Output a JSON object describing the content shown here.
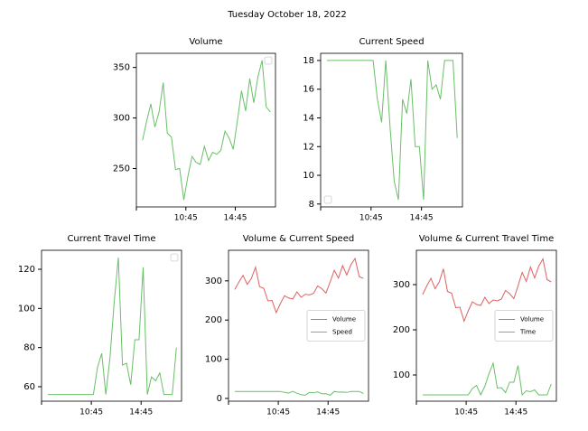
{
  "title": "Tuesday October 18, 2022",
  "chart_data": [
    {
      "type": "line",
      "title": "Volume",
      "legend": "upper right",
      "x": [
        "07:15",
        "07:35",
        "07:55",
        "08:15",
        "08:35",
        "08:55",
        "09:15",
        "09:35",
        "09:55",
        "10:15",
        "10:35",
        "10:55",
        "11:15",
        "11:35",
        "11:55",
        "12:15",
        "12:35",
        "12:55",
        "13:15",
        "13:35",
        "13:55",
        "14:15",
        "14:35",
        "14:55",
        "15:15",
        "15:35",
        "15:55",
        "16:15",
        "16:35",
        "16:55",
        "17:15",
        "17:35"
      ],
      "series": [
        {
          "color": "#6abf69",
          "values": [
            278,
            297,
            314,
            291,
            306,
            335,
            285,
            281,
            249,
            250,
            219,
            242,
            262,
            256,
            254,
            272,
            258,
            266,
            264,
            268,
            287,
            280,
            269,
            297,
            327,
            307,
            339,
            315,
            341,
            357,
            311,
            306
          ]
        }
      ],
      "xlim": [
        "06:45",
        "18:00"
      ],
      "xticks": [
        {
          "value": "06:45",
          "label": null
        },
        "10:45",
        "14:45"
      ],
      "ylim": [
        212,
        364
      ],
      "yticks": [
        250,
        300,
        350
      ]
    },
    {
      "type": "line",
      "title": "Current Speed",
      "legend": "lower left",
      "x": [
        "07:15",
        "07:35",
        "07:55",
        "08:15",
        "08:35",
        "08:55",
        "09:15",
        "09:35",
        "09:55",
        "10:15",
        "10:35",
        "10:55",
        "11:15",
        "11:35",
        "11:55",
        "12:15",
        "12:35",
        "12:55",
        "13:15",
        "13:35",
        "13:55",
        "14:15",
        "14:35",
        "14:55",
        "15:15",
        "15:35",
        "15:55",
        "16:15",
        "16:35",
        "16:55",
        "17:15",
        "17:35"
      ],
      "series": [
        {
          "color": "#6abf69",
          "values": [
            18,
            18,
            18,
            18,
            18,
            18,
            18,
            18,
            18,
            18,
            18,
            18,
            15.3,
            13.7,
            18,
            13.4,
            9.6,
            8.3,
            15.3,
            14.3,
            16.7,
            12,
            12,
            8.3,
            18,
            16,
            16.3,
            15.3,
            18,
            18,
            18,
            12.6
          ]
        }
      ],
      "xlim": [
        "06:45",
        "18:00"
      ],
      "xticks": [
        {
          "value": "06:45",
          "label": null
        },
        "10:45",
        "14:45"
      ],
      "ylim": [
        7.8,
        18.5
      ],
      "yticks": [
        8,
        10,
        12,
        14,
        16,
        18
      ]
    },
    {
      "type": "line",
      "title": "Current Travel Time",
      "legend": "upper right",
      "x": [
        "07:15",
        "07:35",
        "07:55",
        "08:15",
        "08:35",
        "08:55",
        "09:15",
        "09:35",
        "09:55",
        "10:15",
        "10:35",
        "10:55",
        "11:15",
        "11:35",
        "11:55",
        "12:15",
        "12:35",
        "12:55",
        "13:15",
        "13:35",
        "13:55",
        "14:15",
        "14:35",
        "14:55",
        "15:15",
        "15:35",
        "15:55",
        "16:15",
        "16:35",
        "16:55",
        "17:15",
        "17:35"
      ],
      "series": [
        {
          "color": "#6abf69",
          "values": [
            56,
            56,
            56,
            56,
            56,
            56,
            56,
            56,
            56,
            56,
            56,
            56,
            70,
            77,
            56,
            75,
            103,
            126,
            71,
            72,
            61,
            84,
            84,
            121,
            56,
            65,
            63,
            67,
            56,
            56,
            56,
            80
          ]
        }
      ],
      "xlim": [
        "06:45",
        "18:00"
      ],
      "xticks": [
        {
          "value": "06:45",
          "label": null
        },
        "10:45",
        "14:45"
      ],
      "ylim": [
        52.6,
        129.7
      ],
      "yticks": [
        60,
        80,
        100,
        120
      ]
    },
    {
      "type": "line",
      "title": "Volume & Current Speed",
      "legend": "center right",
      "x": [
        "07:15",
        "07:35",
        "07:55",
        "08:15",
        "08:35",
        "08:55",
        "09:15",
        "09:35",
        "09:55",
        "10:15",
        "10:35",
        "10:55",
        "11:15",
        "11:35",
        "11:55",
        "12:15",
        "12:35",
        "12:55",
        "13:15",
        "13:35",
        "13:55",
        "14:15",
        "14:35",
        "14:55",
        "15:15",
        "15:35",
        "15:55",
        "16:15",
        "16:35",
        "16:55",
        "17:15",
        "17:35"
      ],
      "series": [
        {
          "name": "Volume",
          "color": "#e06060",
          "values": [
            278,
            297,
            314,
            291,
            306,
            335,
            285,
            281,
            249,
            250,
            219,
            242,
            262,
            256,
            254,
            272,
            258,
            266,
            264,
            268,
            287,
            280,
            269,
            297,
            327,
            307,
            339,
            315,
            341,
            357,
            311,
            306
          ]
        },
        {
          "name": "Speed",
          "color": "#6abf69",
          "values": [
            18,
            18,
            18,
            18,
            18,
            18,
            18,
            18,
            18,
            18,
            18,
            18,
            15.3,
            13.7,
            18,
            13.4,
            9.6,
            8.3,
            15.3,
            14.3,
            16.7,
            12,
            12,
            8.3,
            18,
            16,
            16.3,
            15.3,
            18,
            18,
            18,
            12.6
          ]
        }
      ],
      "xlim": [
        "06:45",
        "18:00"
      ],
      "xticks": [
        {
          "value": "06:45",
          "label": null
        },
        "10:45",
        "14:45"
      ],
      "ylim": [
        -7,
        378
      ],
      "yticks": [
        0,
        100,
        200,
        300
      ]
    },
    {
      "type": "line",
      "title": "Volume & Current Travel Time",
      "legend": "center right",
      "x": [
        "07:15",
        "07:35",
        "07:55",
        "08:15",
        "08:35",
        "08:55",
        "09:15",
        "09:35",
        "09:55",
        "10:15",
        "10:35",
        "10:55",
        "11:15",
        "11:35",
        "11:55",
        "12:15",
        "12:35",
        "12:55",
        "13:15",
        "13:35",
        "13:55",
        "14:15",
        "14:35",
        "14:55",
        "15:15",
        "15:35",
        "15:55",
        "16:15",
        "16:35",
        "16:55",
        "17:15",
        "17:35"
      ],
      "series": [
        {
          "name": "Volume",
          "color": "#e06060",
          "values": [
            278,
            297,
            314,
            291,
            306,
            335,
            285,
            281,
            249,
            250,
            219,
            242,
            262,
            256,
            254,
            272,
            258,
            266,
            264,
            268,
            287,
            280,
            269,
            297,
            327,
            307,
            339,
            315,
            341,
            357,
            311,
            306
          ]
        },
        {
          "name": "Time",
          "color": "#6abf69",
          "values": [
            56,
            56,
            56,
            56,
            56,
            56,
            56,
            56,
            56,
            56,
            56,
            56,
            70,
            77,
            56,
            75,
            103,
            126,
            71,
            72,
            61,
            84,
            84,
            121,
            56,
            65,
            63,
            67,
            56,
            56,
            56,
            80
          ]
        }
      ],
      "xlim": [
        "06:45",
        "18:00"
      ],
      "xticks": [
        {
          "value": "06:45",
          "label": null
        },
        "10:45",
        "14:45"
      ],
      "ylim": [
        42,
        376
      ],
      "yticks": [
        100,
        200,
        300
      ]
    }
  ]
}
